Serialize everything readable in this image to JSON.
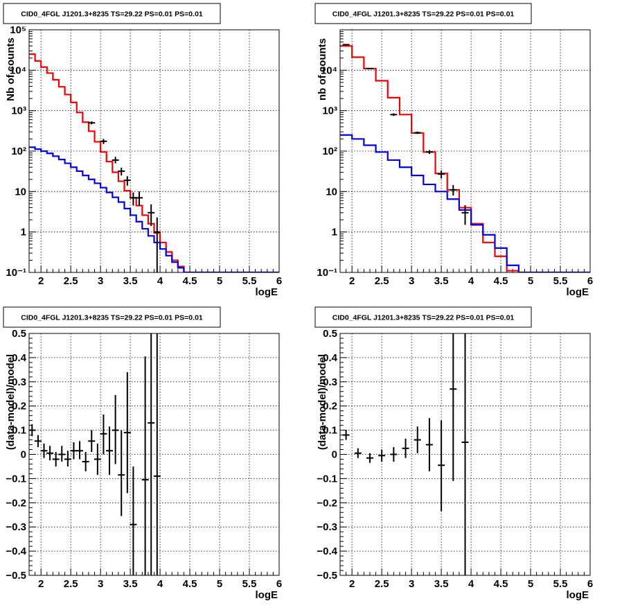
{
  "chart_data": [
    {
      "type": "line",
      "panel": "top-left",
      "title": "CID0_4FGL J1201.3+8235 TS=29.22 PS=0.01 PS=0.01",
      "xlabel": "logE",
      "ylabel": "Nb of counts",
      "xlim": [
        1.8,
        6.0
      ],
      "ylim": [
        0.1,
        100000
      ],
      "yscale": "log",
      "grid": true,
      "xticks": [
        "2",
        "2.5",
        "3",
        "3.5",
        "4",
        "4.5",
        "5",
        "5.5",
        "6"
      ],
      "yticks": [
        "10⁻¹",
        "1",
        "10",
        "10²",
        "10³",
        "10⁴",
        "10⁵"
      ],
      "bin_edges": [
        1.8,
        1.9,
        2.0,
        2.1,
        2.2,
        2.3,
        2.4,
        2.5,
        2.6,
        2.7,
        2.8,
        2.9,
        3.0,
        3.1,
        3.2,
        3.3,
        3.4,
        3.5,
        3.6,
        3.7,
        3.8,
        3.9,
        4.0,
        4.1,
        4.2,
        4.3,
        4.4,
        4.5,
        4.6,
        4.7,
        4.8,
        4.9,
        5.0,
        5.1,
        5.2,
        5.3,
        5.4,
        5.5,
        5.6,
        5.7,
        5.8,
        5.9,
        6.0
      ],
      "series": [
        {
          "color": "#ee0000",
          "style": "step",
          "values": [
            25000,
            17000,
            12000,
            8500,
            5800,
            3900,
            2500,
            1600,
            900,
            520,
            310,
            170,
            95,
            55,
            30,
            18,
            10.5,
            7,
            4.5,
            2.6,
            1.6,
            0.95,
            0.55,
            0.32,
            0.2,
            0.14,
            0.1,
            0.1,
            0.1,
            0.1,
            0.1,
            0.1,
            0.1,
            0.1,
            0.1,
            0.1,
            0.1,
            0.1,
            0.1,
            0.1,
            0.1,
            0.1
          ]
        },
        {
          "color": "#0000dd",
          "style": "step",
          "values": [
            125,
            112,
            100,
            88,
            75,
            62,
            50,
            40,
            32,
            25,
            20,
            16,
            12.5,
            9.5,
            7.2,
            5.5,
            3.8,
            2.6,
            1.8,
            1.2,
            0.8,
            0.55,
            0.38,
            0.26,
            0.18,
            0.13,
            0.1,
            0.1,
            0.1,
            0.1,
            0.1,
            0.1,
            0.1,
            0.1,
            0.1,
            0.1,
            0.1,
            0.1,
            0.1,
            0.1,
            0.1,
            0.1
          ]
        },
        {
          "color": "#000000",
          "style": "errorbar",
          "points": [
            {
              "x": 2.85,
              "y": 500,
              "ylo": 460,
              "yhi": 545
            },
            {
              "x": 3.05,
              "y": 175,
              "ylo": 150,
              "yhi": 200
            },
            {
              "x": 3.25,
              "y": 60,
              "ylo": 50,
              "yhi": 72
            },
            {
              "x": 3.35,
              "y": 32,
              "ylo": 25,
              "yhi": 39
            },
            {
              "x": 3.45,
              "y": 19,
              "ylo": 14,
              "yhi": 24
            },
            {
              "x": 3.55,
              "y": 7,
              "ylo": 4.5,
              "yhi": 9.5
            },
            {
              "x": 3.65,
              "y": 7,
              "ylo": 4.5,
              "yhi": 10
            },
            {
              "x": 3.85,
              "y": 3,
              "ylo": 1.4,
              "yhi": 4.8
            },
            {
              "x": 3.95,
              "y": 1,
              "ylo": 0.1,
              "yhi": 2.3
            }
          ]
        }
      ]
    },
    {
      "type": "line",
      "panel": "top-right",
      "title": "CID0_4FGL J1201.3+8235 TS=29.22 PS=0.01 PS=0.01",
      "xlabel": "logE",
      "ylabel": "nb of counts",
      "xlim": [
        1.8,
        6.0
      ],
      "ylim": [
        0.1,
        100000
      ],
      "yscale": "log",
      "grid": true,
      "xticks": [
        "2",
        "2.5",
        "3",
        "3.5",
        "4",
        "4.5",
        "5",
        "5.5",
        "6"
      ],
      "yticks": [
        "10⁻¹",
        "1",
        "10",
        "10²",
        "10³",
        "10⁴"
      ],
      "bin_edges": [
        1.8,
        2.0,
        2.2,
        2.4,
        2.6,
        2.8,
        3.0,
        3.2,
        3.4,
        3.6,
        3.8,
        4.0,
        4.2,
        4.4,
        4.6,
        4.8,
        5.0,
        5.2,
        5.4,
        5.6,
        5.8,
        6.0
      ],
      "series": [
        {
          "color": "#ee0000",
          "style": "step",
          "values": [
            40000,
            21000,
            11000,
            5500,
            2100,
            800,
            280,
            95,
            28,
            11,
            4,
            1.6,
            0.55,
            0.25,
            0.11,
            0.1,
            0.1,
            0.1,
            0.1,
            0.1,
            0.1
          ]
        },
        {
          "color": "#0000dd",
          "style": "step",
          "values": [
            250,
            200,
            140,
            95,
            60,
            40,
            25,
            15,
            10,
            6.5,
            3.5,
            1.5,
            0.85,
            0.4,
            0.15,
            0.1,
            0.1,
            0.1,
            0.1,
            0.1,
            0.1
          ]
        },
        {
          "color": "#000000",
          "style": "errorbar",
          "points": [
            {
              "x": 1.9,
              "y": 43000,
              "ylo": 41500,
              "yhi": 44500
            },
            {
              "x": 2.3,
              "y": 11000,
              "ylo": 10600,
              "yhi": 11400
            },
            {
              "x": 2.7,
              "y": 800,
              "ylo": 740,
              "yhi": 860
            },
            {
              "x": 3.1,
              "y": 285,
              "ylo": 265,
              "yhi": 305
            },
            {
              "x": 3.3,
              "y": 95,
              "ylo": 85,
              "yhi": 106
            },
            {
              "x": 3.5,
              "y": 27,
              "ylo": 21,
              "yhi": 33
            },
            {
              "x": 3.7,
              "y": 11,
              "ylo": 8,
              "yhi": 14.5
            },
            {
              "x": 3.9,
              "y": 3,
              "ylo": 1.5,
              "yhi": 4.6
            }
          ]
        }
      ]
    },
    {
      "type": "scatter",
      "panel": "bottom-left",
      "title": "CID0_4FGL J1201.3+8235 TS=29.22 PS=0.01 PS=0.01",
      "xlabel": "logE",
      "ylabel": "(data-model)/model",
      "xlim": [
        1.8,
        6.0
      ],
      "ylim": [
        -0.5,
        0.5
      ],
      "grid": true,
      "xticks": [
        "2",
        "2.5",
        "3",
        "3.5",
        "4",
        "4.5",
        "5",
        "5.5",
        "6"
      ],
      "yticks": [
        "−0.5",
        "−0.4",
        "−0.3",
        "−0.2",
        "−0.1",
        "0",
        "0.1",
        "0.2",
        "0.3",
        "0.4",
        "0.5"
      ],
      "points": [
        {
          "x": 1.85,
          "y": 0.1,
          "ylo": 0.075,
          "yhi": 0.125
        },
        {
          "x": 1.95,
          "y": 0.055,
          "ylo": 0.03,
          "yhi": 0.08
        },
        {
          "x": 2.05,
          "y": 0.015,
          "ylo": -0.015,
          "yhi": 0.045
        },
        {
          "x": 2.15,
          "y": 0.005,
          "ylo": -0.025,
          "yhi": 0.035
        },
        {
          "x": 2.25,
          "y": -0.02,
          "ylo": -0.05,
          "yhi": 0.01
        },
        {
          "x": 2.35,
          "y": 0.0,
          "ylo": -0.03,
          "yhi": 0.035
        },
        {
          "x": 2.45,
          "y": -0.02,
          "ylo": -0.05,
          "yhi": 0.015
        },
        {
          "x": 2.55,
          "y": 0.015,
          "ylo": -0.02,
          "yhi": 0.05
        },
        {
          "x": 2.65,
          "y": 0.015,
          "ylo": -0.02,
          "yhi": 0.055
        },
        {
          "x": 2.75,
          "y": -0.03,
          "ylo": -0.07,
          "yhi": 0.01
        },
        {
          "x": 2.85,
          "y": 0.055,
          "ylo": 0.01,
          "yhi": 0.1
        },
        {
          "x": 2.95,
          "y": -0.02,
          "ylo": -0.085,
          "yhi": 0.045
        },
        {
          "x": 3.05,
          "y": 0.085,
          "ylo": 0.0,
          "yhi": 0.165
        },
        {
          "x": 3.15,
          "y": 0.015,
          "ylo": -0.085,
          "yhi": 0.115
        },
        {
          "x": 3.25,
          "y": 0.1,
          "ylo": -0.04,
          "yhi": 0.245
        },
        {
          "x": 3.35,
          "y": -0.085,
          "ylo": -0.255,
          "yhi": 0.1
        },
        {
          "x": 3.45,
          "y": 0.09,
          "ylo": -0.16,
          "yhi": 0.34
        },
        {
          "x": 3.55,
          "y": -0.29,
          "ylo": -0.5,
          "yhi": -0.05
        },
        {
          "x": 3.75,
          "y": -0.105,
          "ylo": -0.5,
          "yhi": 0.405
        },
        {
          "x": 3.85,
          "y": 0.13,
          "ylo": -0.5,
          "yhi": 0.5
        },
        {
          "x": 3.95,
          "y": -0.09,
          "ylo": -0.5,
          "yhi": 0.5
        }
      ]
    },
    {
      "type": "scatter",
      "panel": "bottom-right",
      "title": "CID0_4FGL J1201.3+8235 TS=29.22 PS=0.01 PS=0.01",
      "xlabel": "logE",
      "ylabel": "(data-model)/model",
      "xlim": [
        1.8,
        6.0
      ],
      "ylim": [
        -0.5,
        0.5
      ],
      "grid": true,
      "xticks": [
        "2",
        "2.5",
        "3",
        "3.5",
        "4",
        "4.5",
        "5",
        "5.5",
        "6"
      ],
      "yticks": [
        "−0.5",
        "−0.4",
        "−0.3",
        "−0.2",
        "−0.1",
        "0",
        "0.1",
        "0.2",
        "0.3",
        "0.4",
        "0.5"
      ],
      "points": [
        {
          "x": 1.9,
          "y": 0.08,
          "ylo": 0.06,
          "yhi": 0.1
        },
        {
          "x": 2.1,
          "y": 0.005,
          "ylo": -0.015,
          "yhi": 0.025
        },
        {
          "x": 2.3,
          "y": -0.015,
          "ylo": -0.035,
          "yhi": 0.005
        },
        {
          "x": 2.5,
          "y": -0.005,
          "ylo": -0.03,
          "yhi": 0.02
        },
        {
          "x": 2.7,
          "y": 0.0,
          "ylo": -0.03,
          "yhi": 0.03
        },
        {
          "x": 2.9,
          "y": 0.025,
          "ylo": -0.015,
          "yhi": 0.065
        },
        {
          "x": 3.1,
          "y": 0.06,
          "ylo": 0.005,
          "yhi": 0.115
        },
        {
          "x": 3.3,
          "y": 0.04,
          "ylo": -0.07,
          "yhi": 0.15
        },
        {
          "x": 3.5,
          "y": -0.045,
          "ylo": -0.235,
          "yhi": 0.14
        },
        {
          "x": 3.7,
          "y": 0.27,
          "ylo": -0.11,
          "yhi": 0.5
        },
        {
          "x": 3.9,
          "y": 0.05,
          "ylo": -0.5,
          "yhi": 0.5
        }
      ]
    }
  ]
}
